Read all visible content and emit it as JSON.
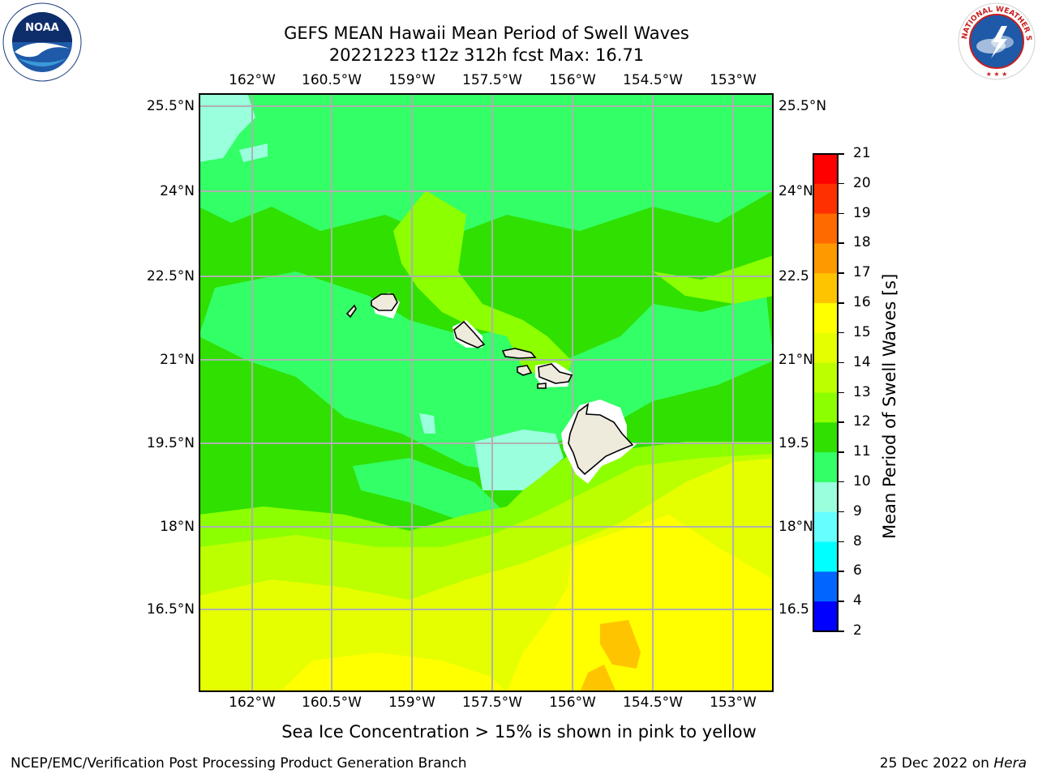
{
  "title": {
    "line1": "GEFS MEAN Hawaii Mean Period of Swell Waves",
    "line2": "20221223 t12z 312h fcst   Max: 16.71"
  },
  "logos": {
    "left": {
      "icon": "noaa-logo",
      "text": "NOAA"
    },
    "right": {
      "icon": "national-weather-service-logo",
      "text": "NATIONAL WEATHER SERVICE"
    }
  },
  "map": {
    "lon_labels": [
      "162°W",
      "160.5°W",
      "159°W",
      "157.5°W",
      "156°W",
      "154.5°W",
      "153°W"
    ],
    "lat_labels": [
      "25.5°N",
      "24°N",
      "22.5°N",
      "21°N",
      "19.5°N",
      "18°N",
      "16.5°N"
    ],
    "lat_labels_right": [
      "25.5°N",
      "24°N",
      "22.5",
      "21°N",
      "19.5",
      "18°N",
      "16.5"
    ],
    "colors": {
      "land": "#efebdc",
      "grid": "#b0b0b0",
      "coast": "#000000"
    },
    "islands": [
      "Kauai",
      "Niihau",
      "Oahu",
      "Molokai",
      "Lanai",
      "Maui",
      "Kahoolawe",
      "Hawaii"
    ]
  },
  "colorbar": {
    "label": "Mean Period of Swell Waves [s]",
    "ticks": [
      "21",
      "20",
      "19",
      "18",
      "17",
      "16",
      "15",
      "14",
      "13",
      "12",
      "11",
      "10",
      "9",
      "8",
      "6",
      "4",
      "2"
    ],
    "levels": [
      {
        "from": 20,
        "to": 21,
        "color": "#ff0000"
      },
      {
        "from": 19,
        "to": 20,
        "color": "#ff3000"
      },
      {
        "from": 18,
        "to": 19,
        "color": "#ff6a00"
      },
      {
        "from": 17,
        "to": 18,
        "color": "#ff9900"
      },
      {
        "from": 16,
        "to": 17,
        "color": "#ffc400"
      },
      {
        "from": 15,
        "to": 16,
        "color": "#ffff00"
      },
      {
        "from": 14,
        "to": 15,
        "color": "#e5ff00"
      },
      {
        "from": 13,
        "to": 14,
        "color": "#bbff00"
      },
      {
        "from": 12,
        "to": 13,
        "color": "#8cff00"
      },
      {
        "from": 11,
        "to": 12,
        "color": "#2fe000"
      },
      {
        "from": 10,
        "to": 11,
        "color": "#33ff66"
      },
      {
        "from": 9,
        "to": 10,
        "color": "#99ffdd"
      },
      {
        "from": 8,
        "to": 9,
        "color": "#66ffff"
      },
      {
        "from": 6,
        "to": 8,
        "color": "#00ffff"
      },
      {
        "from": 4,
        "to": 6,
        "color": "#0066ff"
      },
      {
        "from": 2,
        "to": 4,
        "color": "#0000ff"
      }
    ]
  },
  "footer": {
    "note": "Sea Ice Concentration > 15% is shown in pink to yellow",
    "credit": "NCEP/EMC/Verification Post Processing Product Generation Branch",
    "date": "25 Dec 2022 on",
    "host": "Hera"
  }
}
